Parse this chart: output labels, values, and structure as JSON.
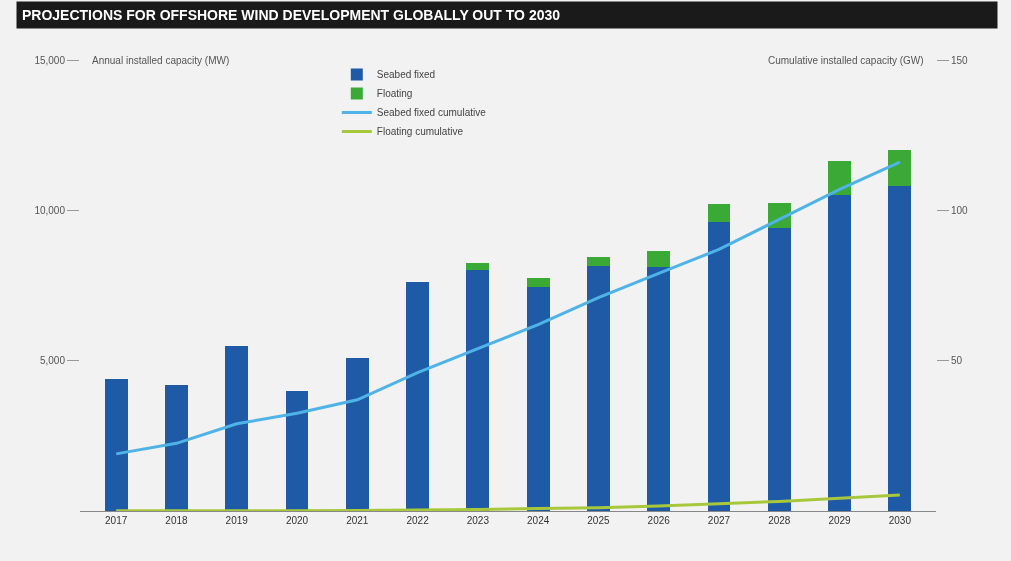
{
  "chart_data": {
    "type": "bar",
    "title": "PROJECTIONS FOR OFFSHORE WIND DEVELOPMENT GLOBALLY OUT TO 2030",
    "ylabel": "Annual installed capacity (MW)",
    "y2label": "Cumulative installed capacity (GW)",
    "categories": [
      "2017",
      "2018",
      "2019",
      "2020",
      "2021",
      "2022",
      "2023",
      "2024",
      "2025",
      "2026",
      "2027",
      "2028",
      "2029",
      "2030"
    ],
    "stacked": true,
    "series": [
      {
        "name": "Seabed fixed",
        "color": "#1f5aa6",
        "values": [
          4400,
          4200,
          5500,
          4000,
          5100,
          7600,
          8000,
          7450,
          8150,
          8100,
          9600,
          9400,
          10500,
          10800
        ]
      },
      {
        "name": "Floating",
        "color": "#3aa935",
        "values": [
          0,
          0,
          0,
          0,
          0,
          0,
          250,
          300,
          300,
          550,
          600,
          850,
          1150,
          1200
        ]
      },
      {
        "name": "Seabed fixed cumulative",
        "type": "line",
        "axis": "y2",
        "color": "#4fb3e8",
        "values": [
          19,
          22.5,
          29,
          32.5,
          37,
          46,
          54,
          62,
          71,
          79,
          87,
          97,
          107,
          116
        ]
      },
      {
        "name": "Floating cumulative",
        "type": "line",
        "axis": "y2",
        "color": "#a8c83c",
        "values": [
          0.1,
          0.1,
          0.1,
          0.1,
          0.2,
          0.3,
          0.5,
          0.8,
          1.1,
          1.7,
          2.4,
          3.2,
          4.2,
          5.3
        ]
      }
    ],
    "ylim": [
      0,
      15000
    ],
    "yticks": [
      {
        "value": 5000,
        "label": "5,000"
      },
      {
        "value": 10000,
        "label": "10,000"
      },
      {
        "value": 15000,
        "label": "15,000"
      }
    ],
    "y2lim": [
      0,
      150
    ],
    "y2ticks": [
      50,
      100,
      150
    ],
    "legend": "top",
    "grid": false,
    "marker": "none",
    "line_style": "solid"
  }
}
